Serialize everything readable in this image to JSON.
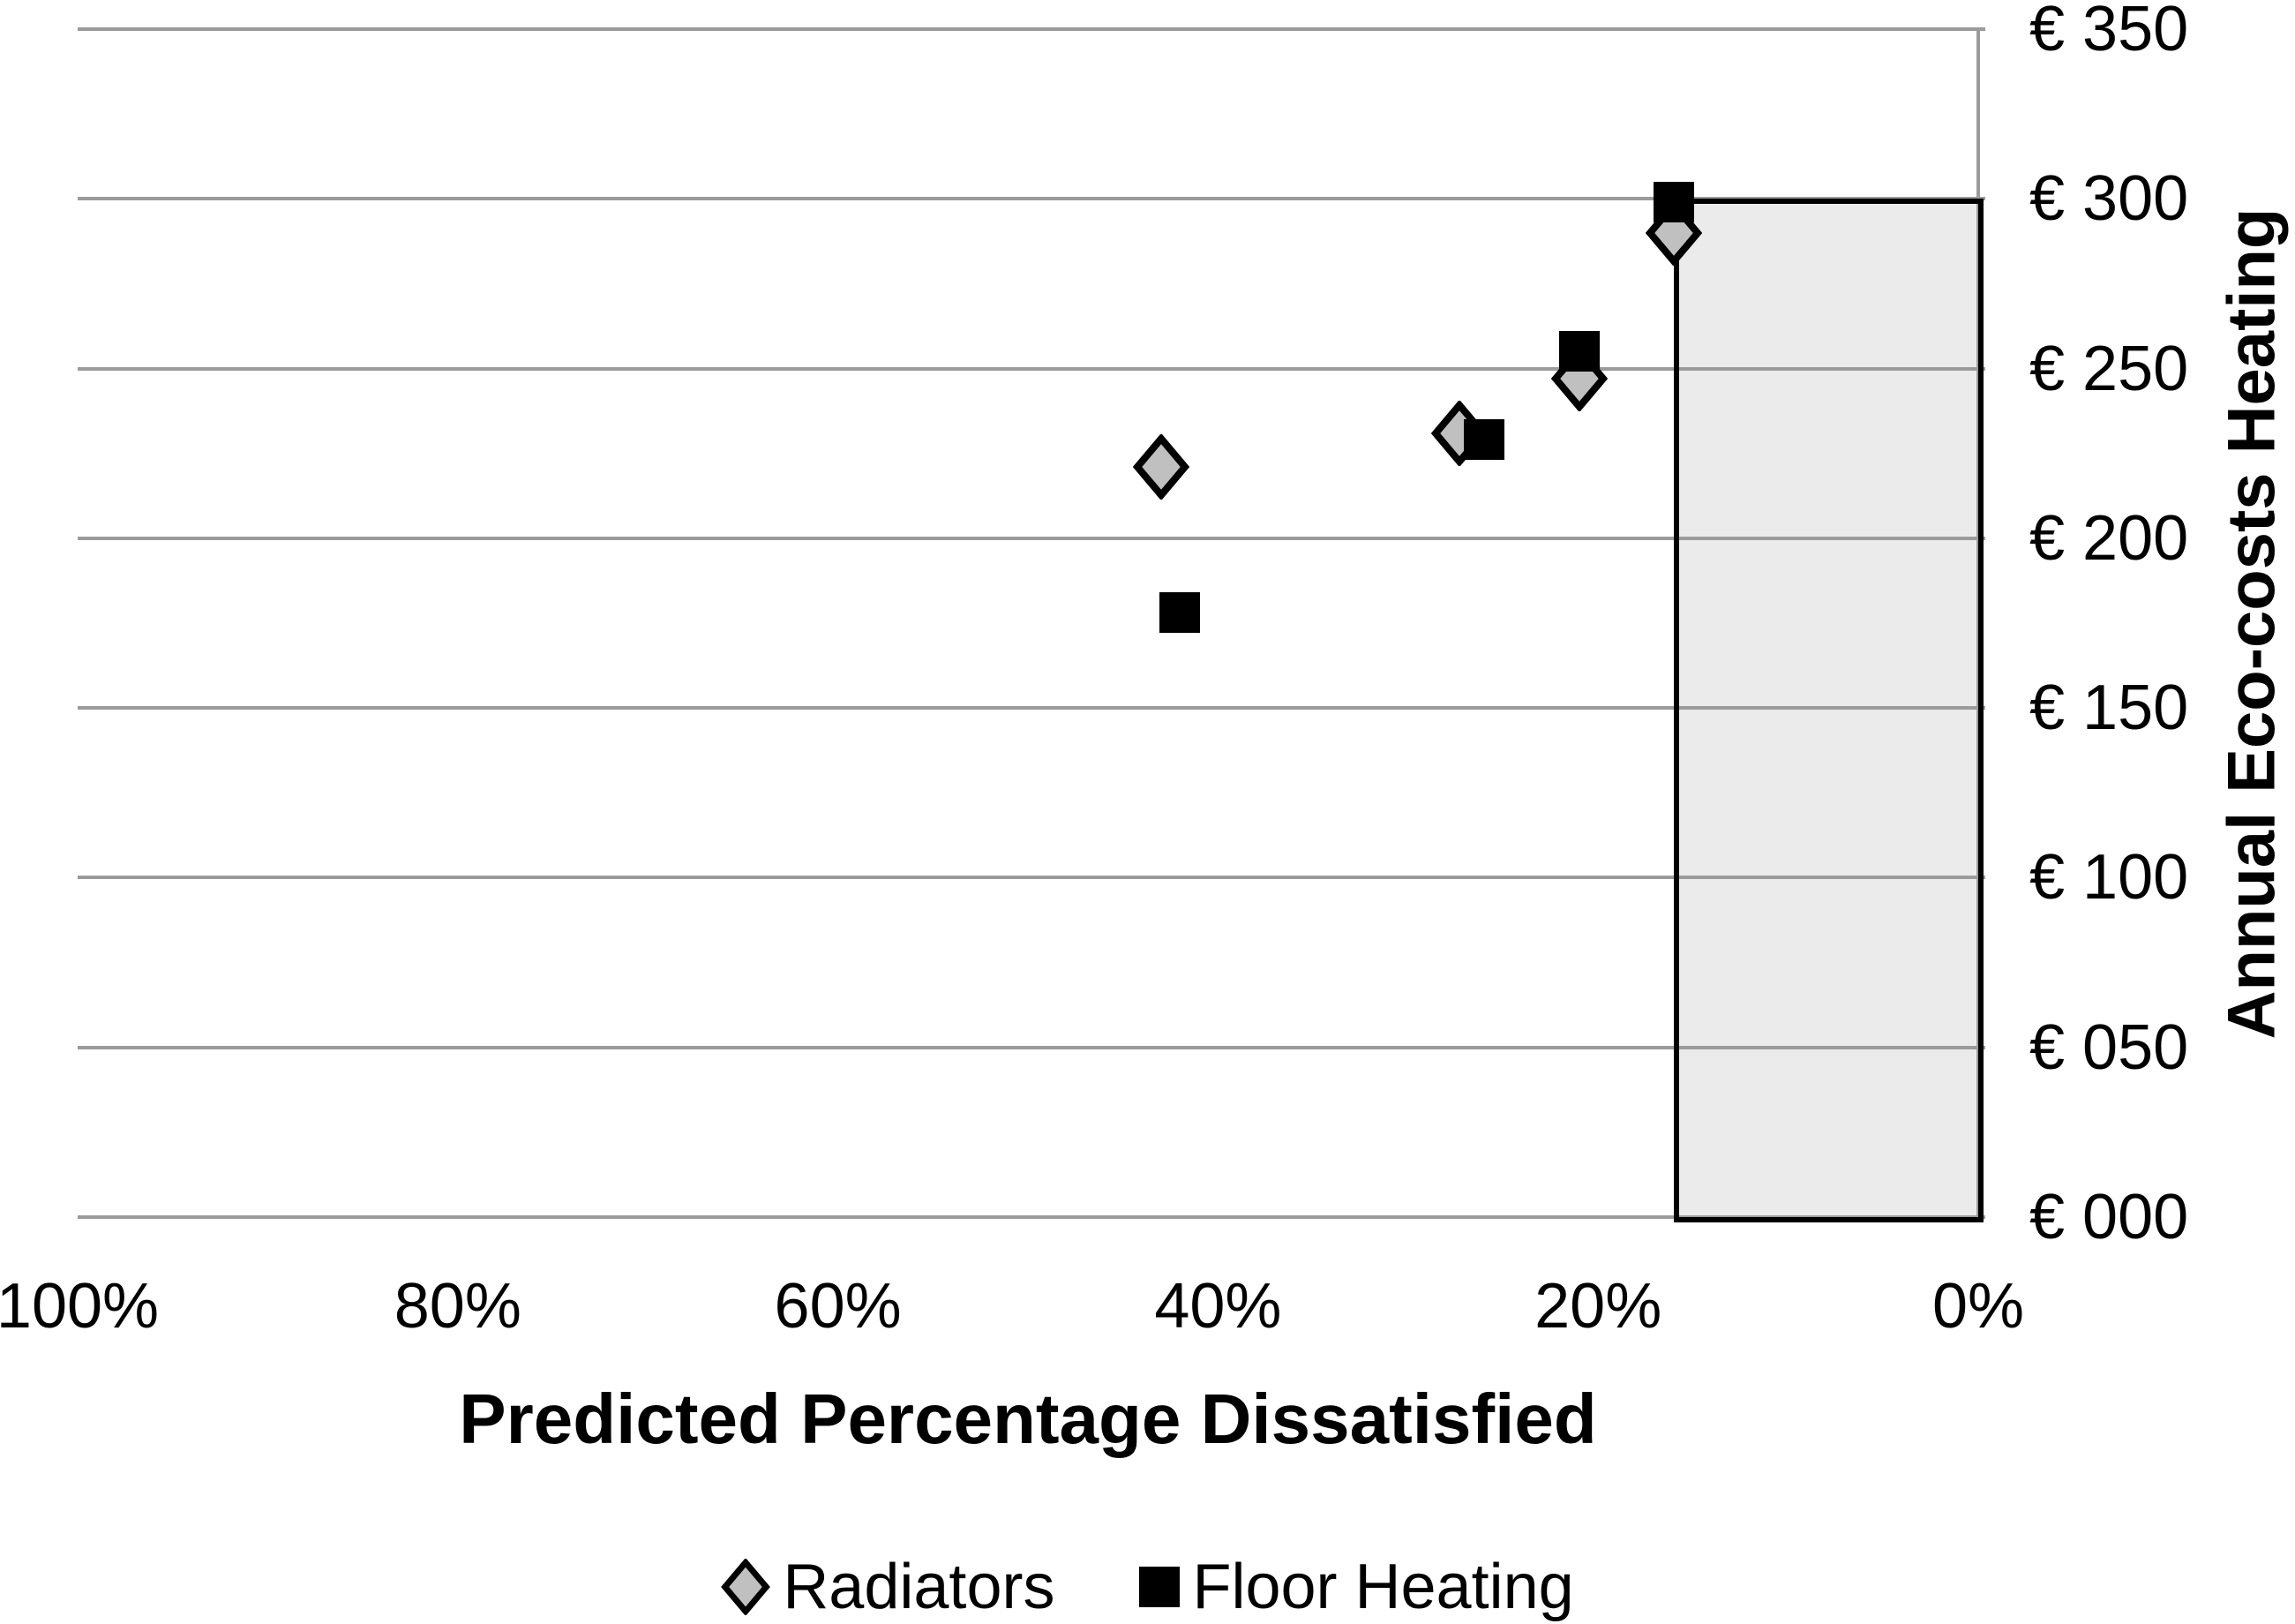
{
  "chart_data": {
    "type": "scatter",
    "title": "",
    "xlabel": "Predicted Percentage Dissatisfied",
    "ylabel": "Annual Eco-costs Heating",
    "x_axis": {
      "tick_labels": [
        "100%",
        "80%",
        "60%",
        "40%",
        "20%",
        "0%"
      ],
      "tick_values": [
        100,
        80,
        60,
        40,
        20,
        0
      ],
      "range": [
        100,
        0
      ],
      "reversed": true
    },
    "y_axis": {
      "tick_labels": [
        "€ 350",
        "€ 300",
        "€ 250",
        "€ 200",
        "€ 150",
        "€ 100",
        "€ 050",
        "€ 000"
      ],
      "tick_values": [
        350,
        300,
        250,
        200,
        150,
        100,
        50,
        0
      ],
      "range": [
        0,
        350
      ],
      "side": "right"
    },
    "grid": true,
    "legend_position": "bottom",
    "series": [
      {
        "name": "Radiators",
        "marker": "diamond",
        "fill": "#c0c0c0",
        "stroke": "#000000",
        "points": [
          {
            "x": 43,
            "y": 221
          },
          {
            "x": 27.3,
            "y": 231
          },
          {
            "x": 21,
            "y": 247
          },
          {
            "x": 16,
            "y": 290
          }
        ]
      },
      {
        "name": "Floor Heating",
        "marker": "square",
        "fill": "#000000",
        "stroke": "#000000",
        "points": [
          {
            "x": 42,
            "y": 178
          },
          {
            "x": 26,
            "y": 229
          },
          {
            "x": 21,
            "y": 255
          },
          {
            "x": 16,
            "y": 299
          }
        ]
      }
    ],
    "highlight_region": {
      "x_from": 16,
      "x_to": 0,
      "y_from": 0,
      "y_to": 300,
      "fill": "#ebebeb",
      "border": "#000000"
    }
  },
  "legend": {
    "items": [
      {
        "label": "Radiators"
      },
      {
        "label": "Floor Heating"
      }
    ]
  },
  "colors": {
    "gridline": "#9b9b9b",
    "background": "#ffffff",
    "text": "#000000",
    "diamond_fill": "#c0c0c0",
    "square_fill": "#000000",
    "region_fill": "#ebebeb"
  }
}
